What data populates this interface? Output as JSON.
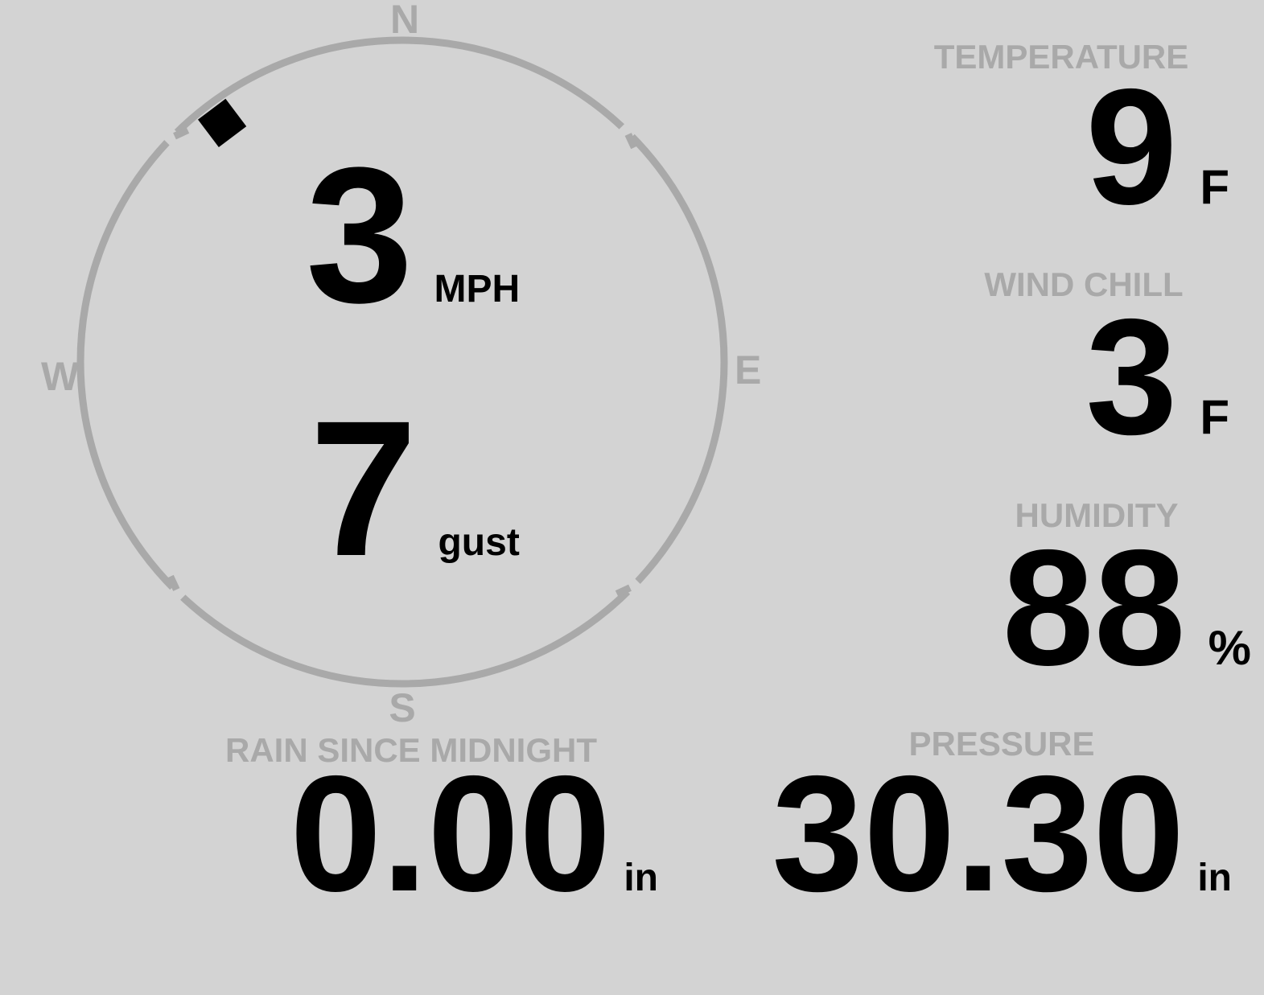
{
  "colors": {
    "background": "#d3d3d3",
    "muted_gray": "#a9a9a9",
    "value_black": "#000000"
  },
  "compass": {
    "cardinals": {
      "north": "N",
      "east": "E",
      "south": "S",
      "west": "W"
    },
    "wind_direction_deg": 323,
    "speed": {
      "value": "3",
      "unit": "MPH"
    },
    "gust": {
      "value": "7",
      "unit": "gust"
    }
  },
  "metrics": {
    "temperature": {
      "label": "TEMPERATURE",
      "value": "9",
      "unit": "F"
    },
    "wind_chill": {
      "label": "WIND CHILL",
      "value": "3",
      "unit": "F"
    },
    "humidity": {
      "label": "HUMIDITY",
      "value": "88",
      "unit": "%"
    },
    "rain": {
      "label": "RAIN SINCE MIDNIGHT",
      "value": "0.00",
      "unit": "in"
    },
    "pressure": {
      "label": "PRESSURE",
      "value": "30.30",
      "unit": "in"
    }
  }
}
